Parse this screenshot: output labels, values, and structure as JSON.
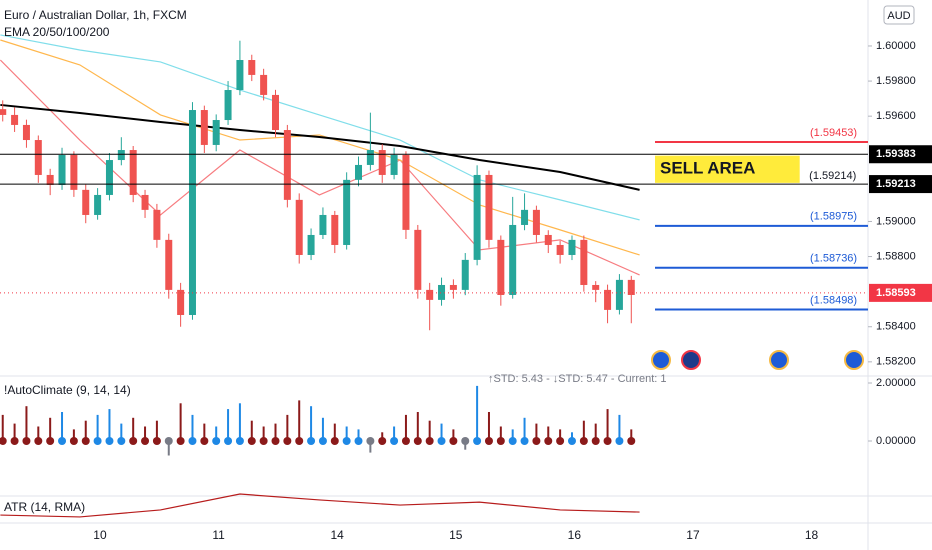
{
  "header": {
    "title": "Euro / Australian Dollar, 1h, FXCM",
    "indicator": "EMA 20/50/100/200"
  },
  "chart_data": [
    {
      "type": "candlestick",
      "currency": "AUD",
      "xlim": [
        -0.843,
        6.476
      ],
      "ylim": [
        1.58125,
        1.60262
      ],
      "xticks": [
        {
          "value": 0,
          "label": "10"
        },
        {
          "value": 1,
          "label": "11"
        },
        {
          "value": 2,
          "label": "14"
        },
        {
          "value": 3,
          "label": "15"
        },
        {
          "value": 4,
          "label": "16"
        },
        {
          "value": 5,
          "label": "17"
        },
        {
          "value": 6,
          "label": "18"
        }
      ],
      "yticks": [
        {
          "value": 1.6,
          "label": "1.60000"
        },
        {
          "value": 1.598,
          "label": "1.59800"
        },
        {
          "value": 1.596,
          "label": "1.59600"
        },
        {
          "value": 1.59,
          "label": "1.59000"
        },
        {
          "value": 1.588,
          "label": "1.58800"
        },
        {
          "value": 1.584,
          "label": "1.58400"
        },
        {
          "value": 1.582,
          "label": "1.58200"
        }
      ],
      "up_color": "#26a69a",
      "down_color": "#ef5350",
      "x": [
        -0.82,
        -0.72,
        -0.62,
        -0.52,
        -0.42,
        -0.32,
        -0.22,
        -0.12,
        -0.02,
        0.08,
        0.18,
        0.28,
        0.38,
        0.48,
        0.58,
        0.68,
        0.78,
        0.88,
        0.98,
        1.08,
        1.18,
        1.28,
        1.38,
        1.48,
        1.58,
        1.68,
        1.78,
        1.88,
        1.98,
        2.08,
        2.18,
        2.28,
        2.38,
        2.48,
        2.58,
        2.68,
        2.78,
        2.88,
        2.98,
        3.08,
        3.18,
        3.28,
        3.38,
        3.48,
        3.58,
        3.68,
        3.78,
        3.88,
        3.98,
        4.08,
        4.18,
        4.28,
        4.38,
        4.48
      ],
      "open": [
        1.5964,
        1.59607,
        1.5955,
        1.59464,
        1.59265,
        1.59208,
        1.59379,
        1.5918,
        1.59037,
        1.59151,
        1.5935,
        1.59407,
        1.59151,
        1.59066,
        1.58895,
        1.5861,
        1.58467,
        1.59635,
        1.59436,
        1.59578,
        1.59749,
        1.5992,
        1.59835,
        1.59721,
        1.59521,
        1.59123,
        1.58809,
        1.58923,
        1.59037,
        1.58866,
        1.59237,
        1.59322,
        1.59407,
        1.59265,
        1.59379,
        1.58952,
        1.5861,
        1.58553,
        1.58638,
        1.5861,
        1.58781,
        1.59265,
        1.58895,
        1.58581,
        1.5898,
        1.59066,
        1.58923,
        1.58866,
        1.58809,
        1.58895,
        1.58638,
        1.5861,
        1.58496,
        1.58667
      ],
      "high": [
        1.5969,
        1.5965,
        1.5958,
        1.5949,
        1.593,
        1.5942,
        1.594,
        1.5921,
        1.5919,
        1.5939,
        1.5948,
        1.5943,
        1.5918,
        1.591,
        1.5893,
        1.5865,
        1.5968,
        1.5966,
        1.5961,
        1.598,
        1.6003,
        1.5995,
        1.5987,
        1.5975,
        1.5955,
        1.5916,
        1.5896,
        1.5908,
        1.5906,
        1.5928,
        1.5937,
        1.5962,
        1.5944,
        1.5942,
        1.594,
        1.5898,
        1.5865,
        1.5868,
        1.5867,
        1.5882,
        1.5932,
        1.5929,
        1.5892,
        1.5914,
        1.5916,
        1.5909,
        1.5895,
        1.5889,
        1.5892,
        1.5892,
        1.5866,
        1.5864,
        1.587,
        1.5869
      ],
      "low": [
        1.5957,
        1.5951,
        1.5942,
        1.5922,
        1.5915,
        1.5918,
        1.5914,
        1.5899,
        1.5901,
        1.5912,
        1.5932,
        1.5911,
        1.5902,
        1.5885,
        1.5856,
        1.584,
        1.5844,
        1.5939,
        1.594,
        1.5955,
        1.5972,
        1.598,
        1.5969,
        1.5948,
        1.5908,
        1.5876,
        1.5878,
        1.589,
        1.5882,
        1.5884,
        1.592,
        1.5929,
        1.5922,
        1.5924,
        1.589,
        1.5856,
        1.5838,
        1.5852,
        1.5856,
        1.5858,
        1.5875,
        1.5885,
        1.5852,
        1.5856,
        1.5895,
        1.5888,
        1.5882,
        1.5876,
        1.5878,
        1.586,
        1.5854,
        1.5842,
        1.5847,
        1.5842
      ],
      "close": [
        1.59607,
        1.5955,
        1.59464,
        1.59265,
        1.59208,
        1.59379,
        1.5918,
        1.59037,
        1.59151,
        1.5935,
        1.59407,
        1.59151,
        1.59066,
        1.58895,
        1.5861,
        1.58467,
        1.59635,
        1.59436,
        1.59578,
        1.59749,
        1.5992,
        1.59835,
        1.59721,
        1.59521,
        1.59123,
        1.58809,
        1.58923,
        1.59037,
        1.58866,
        1.59237,
        1.59322,
        1.59407,
        1.59265,
        1.59379,
        1.58952,
        1.5861,
        1.58553,
        1.58638,
        1.5861,
        1.58781,
        1.59265,
        1.58895,
        1.58581,
        1.5898,
        1.59066,
        1.58923,
        1.58866,
        1.58809,
        1.58895,
        1.58638,
        1.5861,
        1.58496,
        1.58667,
        1.58581
      ],
      "lines": [
        {
          "color": "#f77c80",
          "x": [
            -0.84,
            -0.17,
            0.51,
            1.18,
            1.85,
            2.53,
            3.2,
            3.88,
            4.55
          ],
          "values": [
            1.5992,
            1.59464,
            1.59037,
            1.59407,
            1.59151,
            1.5935,
            1.58838,
            1.58895,
            1.58695
          ]
        },
        {
          "color": "#ffb74d",
          "x": [
            -0.84,
            -0.17,
            0.51,
            1.18,
            1.85,
            2.53,
            3.2,
            3.88,
            4.55
          ],
          "values": [
            1.60034,
            1.59892,
            1.59607,
            1.59464,
            1.59493,
            1.5935,
            1.59094,
            1.58952,
            1.58809
          ]
        },
        {
          "color": "#80deea",
          "x": [
            -0.84,
            -0.17,
            0.51,
            1.18,
            1.85,
            2.53,
            3.2,
            3.88,
            4.55
          ],
          "values": [
            1.60063,
            1.59977,
            1.59909,
            1.59749,
            1.59607,
            1.59464,
            1.59237,
            1.59123,
            1.59009
          ]
        },
        {
          "color": "#000000",
          "x": [
            -0.84,
            -0.17,
            0.51,
            1.18,
            1.85,
            2.53,
            3.2,
            3.88,
            4.55
          ],
          "values": [
            1.59664,
            1.59618,
            1.59567,
            1.59521,
            1.59481,
            1.5943,
            1.5935,
            1.59282,
            1.5918
          ]
        }
      ],
      "levels": [
        {
          "value": 1.59383,
          "label": "1.59383",
          "color": "#000000"
        },
        {
          "value": 1.59213,
          "label": "1.59213",
          "color": "#000000"
        }
      ],
      "zone_lines": [
        {
          "value": 1.59453,
          "tag": "(1.59453)",
          "color": "#f23645",
          "x0": 4.68
        },
        {
          "value": 1.58975,
          "tag": "(1.58975)",
          "color": "#1e5bd6",
          "x0": 4.68
        },
        {
          "value": 1.58736,
          "tag": "(1.58736)",
          "color": "#1e5bd6",
          "x0": 4.68
        },
        {
          "value": 1.58498,
          "tag": "(1.58498)",
          "color": "#1e5bd6",
          "x0": 4.68
        }
      ],
      "zone": {
        "label": "SELL AREA",
        "top": 1.59375,
        "bottom": 1.5922,
        "xrange": [
          4.68,
          5.9
        ],
        "color": "#ffeb3b"
      },
      "annotation": {
        "text": "(1.59214)",
        "value": 1.59214,
        "x": 5.98
      },
      "current": {
        "value": 1.58593,
        "label": "1.58593",
        "color": "#f23645"
      }
    },
    {
      "type": "histogram",
      "title": "!AutoClimate (9, 14, 14)",
      "subtitle": "↑STD: 5.43 - ↓STD: 5.47 - Current: 1",
      "xlim": [
        -0.843,
        6.476
      ],
      "ylim": [
        -1.862,
        2.172
      ],
      "yticks": [
        {
          "value": 2,
          "label": "2.00000"
        },
        {
          "value": 0,
          "label": "0.00000"
        }
      ],
      "x": [
        -0.82,
        -0.72,
        -0.62,
        -0.52,
        -0.42,
        -0.32,
        -0.22,
        -0.12,
        -0.02,
        0.08,
        0.18,
        0.28,
        0.38,
        0.48,
        0.58,
        0.68,
        0.78,
        0.88,
        0.98,
        1.08,
        1.18,
        1.28,
        1.38,
        1.48,
        1.58,
        1.68,
        1.78,
        1.88,
        1.98,
        2.08,
        2.18,
        2.28,
        2.38,
        2.48,
        2.58,
        2.68,
        2.78,
        2.88,
        2.98,
        3.08,
        3.18,
        3.28,
        3.38,
        3.48,
        3.58,
        3.68,
        3.78,
        3.88,
        3.98,
        4.08,
        4.18,
        4.28,
        4.38,
        4.48
      ],
      "values": [
        0.9,
        0.6,
        1.2,
        0.5,
        0.8,
        1.0,
        0.4,
        0.7,
        0.9,
        1.1,
        0.6,
        0.8,
        0.5,
        0.7,
        -0.5,
        1.3,
        0.9,
        0.6,
        0.5,
        1.1,
        1.3,
        0.7,
        0.5,
        0.6,
        0.9,
        1.4,
        1.2,
        0.8,
        0.6,
        0.5,
        0.4,
        -0.4,
        0.3,
        0.5,
        0.9,
        1.0,
        0.7,
        0.6,
        0.4,
        -0.3,
        1.9,
        1.0,
        0.5,
        0.4,
        0.8,
        0.6,
        0.5,
        0.4,
        0.3,
        0.7,
        0.6,
        1.1,
        0.9,
        0.4
      ],
      "colors": [
        "#8b1a1a",
        "#8b1a1a",
        "#8b1a1a",
        "#8b1a1a",
        "#8b1a1a",
        "#1e88e5",
        "#8b1a1a",
        "#8b1a1a",
        "#1e88e5",
        "#1e88e5",
        "#1e88e5",
        "#8b1a1a",
        "#8b1a1a",
        "#8b1a1a",
        "#787b86",
        "#8b1a1a",
        "#1e88e5",
        "#8b1a1a",
        "#1e88e5",
        "#1e88e5",
        "#1e88e5",
        "#8b1a1a",
        "#8b1a1a",
        "#8b1a1a",
        "#8b1a1a",
        "#8b1a1a",
        "#1e88e5",
        "#1e88e5",
        "#8b1a1a",
        "#1e88e5",
        "#1e88e5",
        "#787b86",
        "#8b1a1a",
        "#1e88e5",
        "#8b1a1a",
        "#8b1a1a",
        "#8b1a1a",
        "#1e88e5",
        "#8b1a1a",
        "#787b86",
        "#1e88e5",
        "#8b1a1a",
        "#8b1a1a",
        "#1e88e5",
        "#1e88e5",
        "#8b1a1a",
        "#8b1a1a",
        "#8b1a1a",
        "#1e88e5",
        "#8b1a1a",
        "#8b1a1a",
        "#8b1a1a",
        "#1e88e5",
        "#8b1a1a"
      ]
    },
    {
      "type": "line",
      "title": "ATR (14, RMA)",
      "color": "#b71c1c",
      "xlim": [
        -0.843,
        6.476
      ],
      "ylim": [
        0.0005,
        0.0018
      ],
      "x": [
        -0.84,
        -0.17,
        0.51,
        1.18,
        1.85,
        2.53,
        3.2,
        3.88,
        4.55
      ],
      "values": [
        0.00087,
        0.0008,
        0.00106,
        0.00165,
        0.00143,
        0.00124,
        0.00135,
        0.00106,
        0.00098
      ]
    }
  ]
}
